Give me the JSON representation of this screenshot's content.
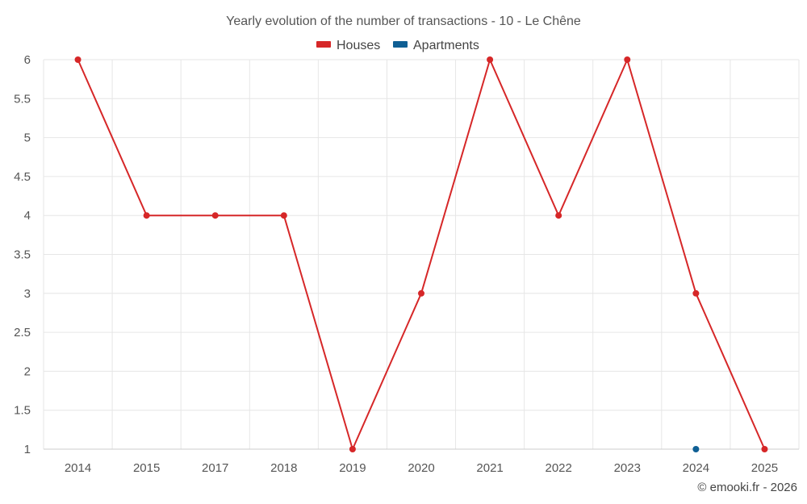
{
  "chart_data": {
    "type": "line",
    "title": "Yearly evolution of the number of transactions - 10 - Le Chêne",
    "categories": [
      "2014",
      "2015",
      "2017",
      "2018",
      "2019",
      "2020",
      "2021",
      "2022",
      "2023",
      "2024",
      "2025"
    ],
    "series": [
      {
        "name": "Houses",
        "color": "#d62728",
        "values": [
          6,
          4,
          4,
          4,
          1,
          3,
          6,
          4,
          6,
          3,
          1
        ]
      },
      {
        "name": "Apartments",
        "color": "#0f5f94",
        "values": [
          null,
          null,
          null,
          null,
          null,
          null,
          null,
          null,
          null,
          1,
          null
        ]
      }
    ],
    "yticks": [
      "1",
      "1.5",
      "2",
      "2.5",
      "3",
      "3.5",
      "4",
      "4.5",
      "5",
      "5.5",
      "6"
    ],
    "ylim": [
      1,
      6
    ],
    "xlabel": "",
    "ylabel": "",
    "grid": true,
    "legend": "top-center"
  },
  "credit": "© emooki.fr - 2026"
}
